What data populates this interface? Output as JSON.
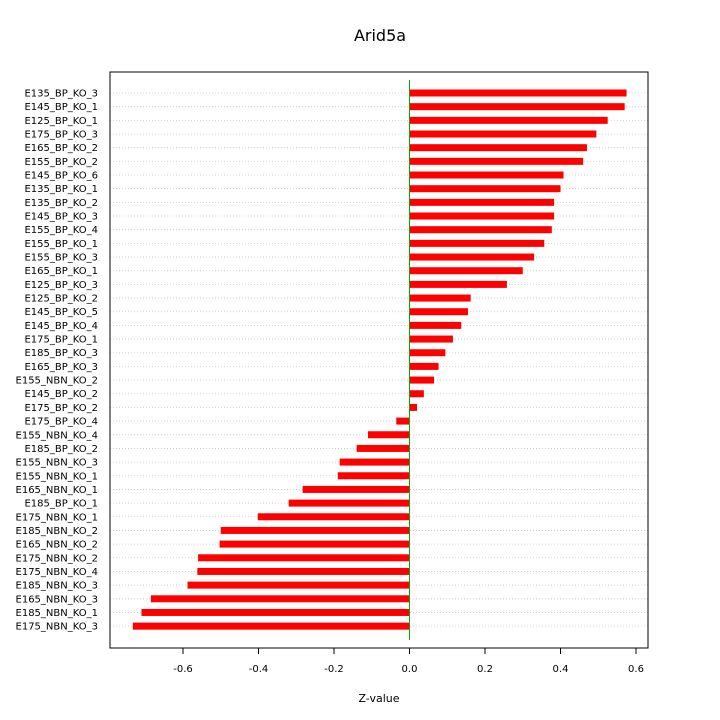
{
  "chart_data": {
    "type": "bar",
    "orientation": "horizontal",
    "title": "Arid5a",
    "xlabel": "Z-value",
    "ylabel": "",
    "xlim": [
      -0.76,
      0.63
    ],
    "xticks": [
      "-0.6",
      "-0.4",
      "-0.2",
      "0.0",
      "0.2",
      "0.4",
      "0.6"
    ],
    "xtick_values": [
      -0.6,
      -0.4,
      -0.2,
      0.0,
      0.2,
      0.4,
      0.6
    ],
    "grid": "horizontal dotted",
    "bar_color": "#ff0000",
    "zero_line_color": "#00aa00",
    "categories": [
      "E135_BP_KO_3",
      "E145_BP_KO_1",
      "E125_BP_KO_1",
      "E175_BP_KO_3",
      "E165_BP_KO_2",
      "E155_BP_KO_2",
      "E145_BP_KO_6",
      "E135_BP_KO_1",
      "E135_BP_KO_2",
      "E145_BP_KO_3",
      "E155_BP_KO_4",
      "E155_BP_KO_1",
      "E155_BP_KO_3",
      "E165_BP_KO_1",
      "E125_BP_KO_3",
      "E125_BP_KO_2",
      "E145_BP_KO_5",
      "E145_BP_KO_4",
      "E175_BP_KO_1",
      "E185_BP_KO_3",
      "E165_BP_KO_3",
      "E155_NBN_KO_2",
      "E145_BP_KO_2",
      "E175_BP_KO_2",
      "E175_BP_KO_4",
      "E155_NBN_KO_4",
      "E185_BP_KO_2",
      "E155_NBN_KO_3",
      "E155_NBN_KO_1",
      "E165_NBN_KO_1",
      "E185_BP_KO_1",
      "E175_NBN_KO_1",
      "E185_NBN_KO_2",
      "E165_NBN_KO_2",
      "E175_NBN_KO_2",
      "E175_NBN_KO_4",
      "E185_NBN_KO_3",
      "E165_NBN_KO_3",
      "E185_NBN_KO_1",
      "E175_NBN_KO_3"
    ],
    "values": [
      0.575,
      0.57,
      0.525,
      0.495,
      0.47,
      0.46,
      0.408,
      0.4,
      0.383,
      0.383,
      0.377,
      0.357,
      0.33,
      0.3,
      0.258,
      0.162,
      0.155,
      0.137,
      0.115,
      0.095,
      0.077,
      0.065,
      0.038,
      0.02,
      -0.035,
      -0.11,
      -0.14,
      -0.185,
      -0.19,
      -0.283,
      -0.32,
      -0.402,
      -0.5,
      -0.503,
      -0.56,
      -0.562,
      -0.588,
      -0.685,
      -0.71,
      -0.733
    ]
  }
}
